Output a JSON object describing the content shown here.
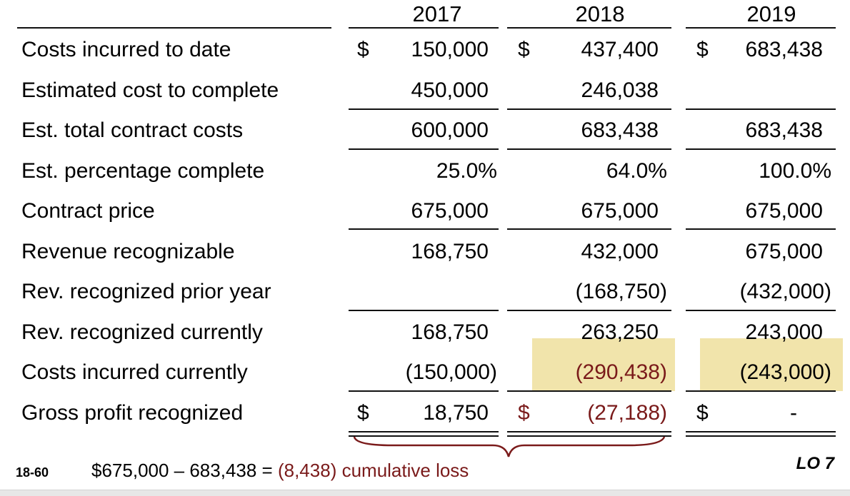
{
  "header": {
    "years": [
      "2017",
      "2018",
      "2019"
    ]
  },
  "currency_symbol": "$",
  "rows": [
    {
      "label": "Costs incurred to date",
      "v2017": "150,000",
      "v2018": "437,400",
      "v2019": "683,438"
    },
    {
      "label": "Estimated cost to complete",
      "v2017": "450,000",
      "v2018": "246,038",
      "v2019": ""
    },
    {
      "label": "Est. total contract costs",
      "v2017": "600,000",
      "v2018": "683,438",
      "v2019": "683,438"
    },
    {
      "label": "Est. percentage complete",
      "v2017": "25.0%",
      "v2018": "64.0%",
      "v2019": "100.0%"
    },
    {
      "label": "Contract price",
      "v2017": "675,000",
      "v2018": "675,000",
      "v2019": "675,000"
    },
    {
      "label": "Revenue recognizable",
      "v2017": "168,750",
      "v2018": "432,000",
      "v2019": "675,000"
    },
    {
      "label": "Rev. recognized prior year",
      "v2017": "",
      "v2018": "(168,750)",
      "v2019": "(432,000)"
    },
    {
      "label": "Rev. recognized currently",
      "v2017": "168,750",
      "v2018": "263,250",
      "v2019": "243,000"
    },
    {
      "label": "Costs incurred currently",
      "v2017": "(150,000)",
      "v2018": "(290,438)",
      "v2019": "(243,000)"
    },
    {
      "label": "Gross profit recognized",
      "v2017": "18,750",
      "v2018": "(27,188)",
      "v2019": "-"
    }
  ],
  "footnote": {
    "calc": "$675,000 – 683,438 = ",
    "loss": "(8,438) cumulative loss"
  },
  "slide_number": "18-60",
  "learning_objective": "LO 7",
  "colors": {
    "highlight": "#eedf9c",
    "loss_red": "#7a1a1a"
  }
}
